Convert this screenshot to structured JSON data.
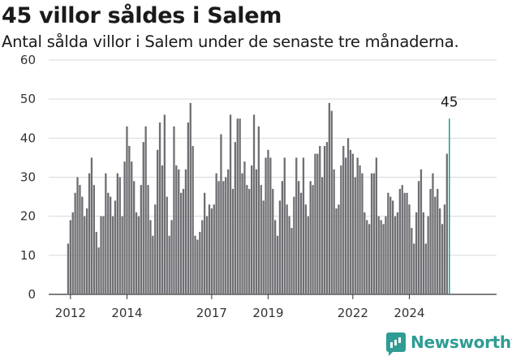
{
  "header": {
    "title": "45 villor såldes i Salem",
    "subtitle": "Antal sålda villor i Salem under de senaste tre månaderna."
  },
  "brand": {
    "name": "Newsworthy",
    "icon": "bar-chart-speech-bubble-icon",
    "color": "#2f9c95"
  },
  "colors": {
    "bar": "#6f6e73",
    "highlight": "#2f9c95",
    "grid": "#d9d9d9",
    "axis": "#333333"
  },
  "chart_data": {
    "type": "bar",
    "title": "45 villor såldes i Salem",
    "subtitle": "Antal sålda villor i Salem under de senaste tre månaderna.",
    "ylim": [
      0,
      60
    ],
    "yticks": [
      0,
      10,
      20,
      30,
      40,
      50,
      60
    ],
    "x_start": "2011-12",
    "xticks": [
      "2012",
      "2014",
      "2017",
      "2019",
      "2022",
      "2024"
    ],
    "grid": true,
    "values": [
      13,
      19,
      21,
      26,
      30,
      28,
      25,
      20,
      22,
      31,
      35,
      28,
      16,
      12,
      20,
      20,
      31,
      26,
      25,
      20,
      24,
      31,
      30,
      20,
      34,
      43,
      38,
      34,
      29,
      21,
      20,
      28,
      39,
      43,
      28,
      19,
      15,
      23,
      37,
      44,
      33,
      46,
      25,
      15,
      19,
      43,
      33,
      32,
      26,
      27,
      32,
      44,
      49,
      38,
      15,
      14,
      16,
      19,
      26,
      20,
      23,
      22,
      23,
      31,
      29,
      41,
      29,
      30,
      32,
      46,
      27,
      39,
      45,
      45,
      31,
      34,
      28,
      27,
      33,
      46,
      32,
      43,
      28,
      24,
      35,
      37,
      35,
      27,
      19,
      15,
      24,
      29,
      35,
      23,
      20,
      17,
      25,
      35,
      29,
      26,
      35,
      23,
      20,
      29,
      28,
      36,
      36,
      38,
      30,
      38,
      39,
      49,
      47,
      32,
      22,
      23,
      33,
      38,
      35,
      40,
      37,
      36,
      30,
      35,
      33,
      31,
      21,
      19,
      18,
      31,
      31,
      35,
      20,
      19,
      18,
      20,
      26,
      25,
      24,
      20,
      21,
      27,
      28,
      26,
      26,
      23,
      17,
      13,
      21,
      29,
      32,
      21,
      13,
      20,
      27,
      31,
      25,
      27,
      22,
      18,
      23,
      36,
      45
    ],
    "highlight": {
      "label": "45",
      "value": 45
    }
  }
}
